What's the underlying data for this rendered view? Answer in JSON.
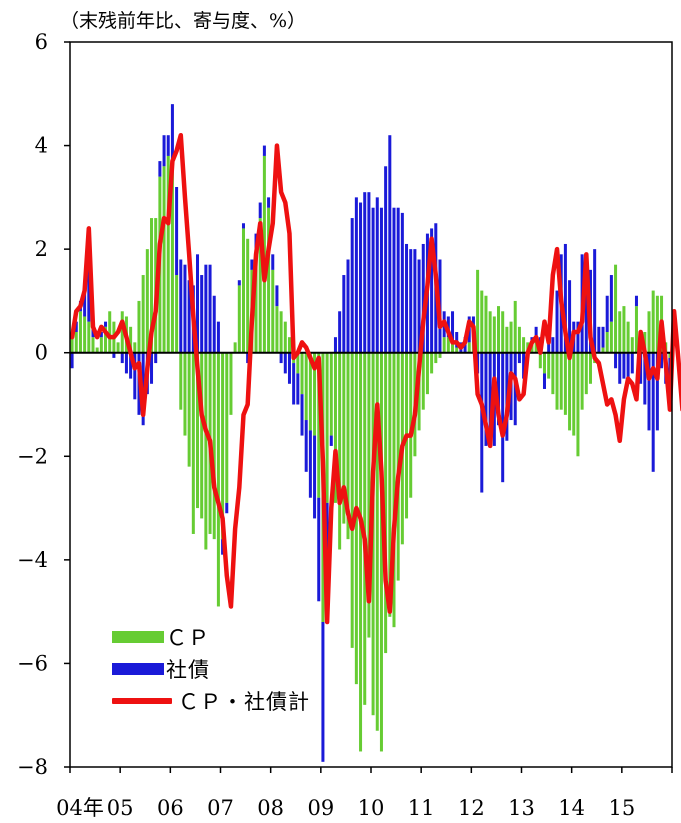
{
  "chart_data": {
    "type": "bar",
    "unit_label": "（末残前年比、寄与度、%）",
    "ylim": [
      -8,
      6
    ],
    "yticks": [
      6,
      4,
      2,
      0,
      -2,
      -4,
      -6,
      -8
    ],
    "ytick_labels": [
      "6",
      "4",
      "2",
      "0",
      "−2",
      "−4",
      "−6",
      "−8"
    ],
    "xtick_labels": [
      "04年",
      "05",
      "06",
      "07",
      "08",
      "09",
      "10",
      "11",
      "12",
      "13",
      "14",
      "15"
    ],
    "x_start_year": 2004,
    "x_start_month": 1,
    "stacked": true,
    "series": [
      {
        "name": "ＣＰ",
        "kind": "bar",
        "color": "#66cc33",
        "values": [
          0.3,
          0.4,
          0.8,
          0.7,
          0.6,
          0.3,
          0.1,
          0.3,
          0.5,
          0.8,
          0.6,
          0.2,
          0.8,
          0.7,
          0.5,
          0.2,
          1.0,
          1.5,
          2.0,
          2.6,
          2.6,
          3.4,
          3.6,
          3.8,
          3.5,
          1.5,
          -1.1,
          -1.6,
          -2.2,
          -3.5,
          -3.0,
          -3.2,
          -3.8,
          -3.5,
          -3.6,
          -4.9,
          -3.6,
          -2.9,
          -1.2,
          0.2,
          1.3,
          2.4,
          2.2,
          1.6,
          2.0,
          2.6,
          3.8,
          2.8,
          1.6,
          0.9,
          0.8,
          0.6,
          0.3,
          -0.2,
          -0.4,
          -0.8,
          -1.3,
          -1.5,
          -1.6,
          -2.8,
          -5.2,
          -2.9,
          -1.6,
          -2.9,
          -3.8,
          -3.3,
          -3.6,
          -5.7,
          -6.4,
          -7.7,
          -6.8,
          -5.5,
          -7.0,
          -7.3,
          -7.7,
          -5.8,
          -5.1,
          -5.3,
          -4.4,
          -3.7,
          -3.2,
          -2.8,
          -2.0,
          -1.5,
          -1.1,
          -0.8,
          -0.4,
          -0.2,
          -0.1,
          0.3,
          0.3,
          0.2,
          0.1,
          0.0,
          0.0,
          0.2,
          0.3,
          1.6,
          1.2,
          1.1,
          0.8,
          0.7,
          0.9,
          0.8,
          0.5,
          0.6,
          1.0,
          0.5,
          0.3,
          0.2,
          0.2,
          0.3,
          -0.3,
          -0.4,
          -0.5,
          -0.8,
          -1.1,
          -1.1,
          -1.2,
          -1.5,
          -1.6,
          -2.0,
          -1.1,
          -0.8,
          -0.6,
          -0.2,
          0.0,
          0.1,
          0.4,
          0.6,
          1.7,
          0.8,
          0.9,
          0.6,
          0.3,
          0.9,
          0.3,
          0.4,
          0.8,
          1.2,
          1.1,
          1.1,
          0.2,
          -0.1
        ],
        "visible_count": 141
      },
      {
        "name": "社債",
        "kind": "bar",
        "color": "#1a1ad8",
        "values": [
          -0.3,
          0.2,
          0.2,
          0.5,
          1.6,
          0.2,
          0.0,
          0.1,
          0.1,
          0.0,
          -0.1,
          0.0,
          -0.2,
          -0.4,
          -0.5,
          -0.9,
          -1.2,
          -1.4,
          -0.8,
          -0.6,
          -0.2,
          0.3,
          0.6,
          0.4,
          1.3,
          1.7,
          1.8,
          1.7,
          1.4,
          1.3,
          1.9,
          1.5,
          1.7,
          1.7,
          1.1,
          0.6,
          -0.3,
          -0.2,
          0.0,
          0.0,
          0.1,
          0.1,
          -0.2,
          0.2,
          0.3,
          0.3,
          0.2,
          0.2,
          0.3,
          0.4,
          -0.2,
          -0.4,
          -0.6,
          -0.8,
          -0.6,
          -0.8,
          -1.0,
          -1.3,
          -1.6,
          -2.0,
          -2.7,
          -1.6,
          -0.2,
          0.3,
          0.8,
          1.5,
          1.8,
          2.6,
          3.0,
          2.9,
          3.1,
          3.1,
          2.8,
          3.0,
          2.8,
          3.6,
          4.2,
          2.8,
          2.8,
          2.7,
          2.1,
          2.0,
          2.0,
          1.8,
          2.1,
          2.3,
          2.4,
          2.5,
          1.8,
          0.5,
          0.4,
          0.6,
          0.3,
          0.2,
          0.3,
          0.5,
          0.4,
          -0.4,
          -2.7,
          -1.8,
          -1.5,
          -1.8,
          -1.4,
          -2.5,
          -1.7,
          -1.3,
          -1.4,
          -0.2,
          -0.5,
          0.0,
          0.1,
          0.2,
          0.3,
          -0.3,
          0.5,
          0.3,
          1.2,
          1.9,
          2.1,
          1.4,
          0.6,
          0.6,
          1.9,
          1.8,
          1.6,
          2.0,
          0.5,
          0.4,
          0.7,
          0.9,
          -0.3,
          -0.6,
          -0.5,
          -0.5,
          -0.4,
          0.2,
          -0.6,
          -1.0,
          -1.5,
          -2.3,
          -1.5,
          -0.3,
          -0.6,
          -0.8
        ],
        "visible_count": 141
      },
      {
        "name": "ＣＰ・社債計",
        "kind": "line",
        "color": "#ee1111",
        "values": [
          0.3,
          0.8,
          0.9,
          1.2,
          2.4,
          0.5,
          0.3,
          0.5,
          0.4,
          0.3,
          0.3,
          0.4,
          0.6,
          0.3,
          0.0,
          -0.3,
          -0.2,
          -1.2,
          -0.3,
          0.4,
          0.8,
          2.1,
          2.6,
          2.5,
          3.7,
          3.9,
          4.2,
          3.0,
          1.9,
          0.7,
          -0.3,
          -1.2,
          -1.5,
          -1.7,
          -2.6,
          -2.9,
          -3.2,
          -4.3,
          -4.9,
          -3.4,
          -2.6,
          -1.2,
          -1.0,
          0.6,
          1.9,
          2.5,
          1.4,
          2.0,
          2.5,
          4.0,
          3.1,
          2.9,
          2.3,
          -0.1,
          0.0,
          0.2,
          0.1,
          -0.1,
          -0.3,
          -0.1,
          -2.1,
          -5.2,
          -3.0,
          -1.9,
          -2.9,
          -2.6,
          -3.1,
          -3.4,
          -3.0,
          -3.2,
          -3.6,
          -4.8,
          -2.3,
          -1.0,
          -2.3,
          -4.4,
          -5.0,
          -3.4,
          -2.4,
          -1.8,
          -1.6,
          -1.6,
          -1.2,
          -0.3,
          0.6,
          1.3,
          2.2,
          1.5,
          0.5,
          0.6,
          0.4,
          0.2,
          0.2,
          0.1,
          0.2,
          0.6,
          0.5,
          -0.8,
          -1.0,
          -1.4,
          -1.8,
          -0.5,
          -1.2,
          -1.6,
          -1.2,
          -0.4,
          -0.5,
          -0.9,
          -0.8,
          0.0,
          0.2,
          0.3,
          0.0,
          0.6,
          0.2,
          1.5,
          2.0,
          1.0,
          0.4,
          -0.1,
          0.4,
          0.4,
          0.6,
          1.9,
          0.3,
          -0.1,
          -0.2,
          -0.6,
          -1.0,
          -0.9,
          -1.2,
          -1.7,
          -0.9,
          -0.5,
          -0.6,
          -0.9,
          0.4,
          0.0,
          -0.5,
          -0.3,
          -0.5,
          0.6,
          -0.2,
          -1.1,
          0.8,
          -0.1,
          -1.1
        ],
        "visible_count": 141
      }
    ],
    "zero_line": true,
    "legend_position": "bottom-left"
  }
}
